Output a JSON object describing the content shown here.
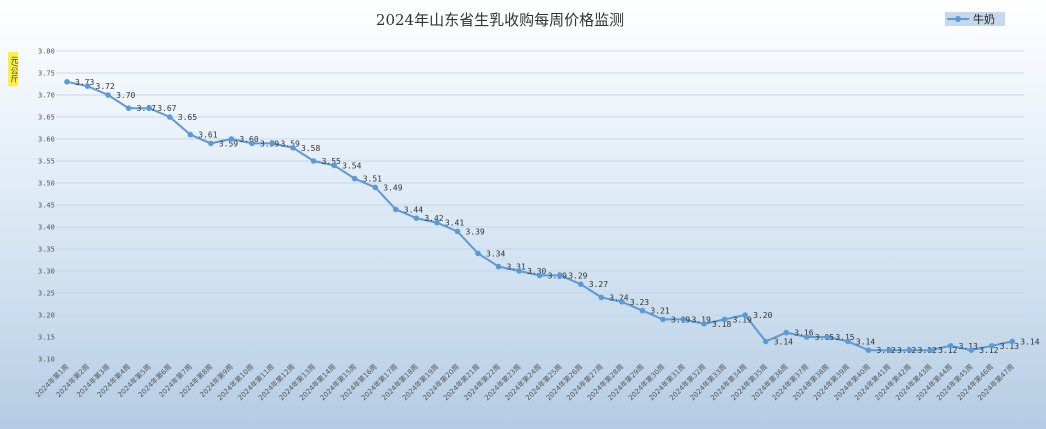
{
  "chart_data": {
    "type": "line",
    "title": "2024年山东省生乳收购每周价格监测",
    "ylabel": "元/公斤",
    "xlabel": "",
    "ylim": [
      3.1,
      3.8
    ],
    "yticks": [
      "3.10",
      "3.15",
      "3.20",
      "3.25",
      "3.30",
      "3.35",
      "3.40",
      "3.45",
      "3.50",
      "3.55",
      "3.60",
      "3.65",
      "3.70",
      "3.75",
      "3.80"
    ],
    "grid": true,
    "legend_position": "top-right",
    "categories": [
      "2024年第1周",
      "2024年第2周",
      "2024年第3周",
      "2024年第4周",
      "2024年第5周",
      "2024年第6周",
      "2024年第7周",
      "2024年第8周",
      "2024年第9周",
      "2024年第10周",
      "2024年第11周",
      "2024年第12周",
      "2024年第13周",
      "2024年第14周",
      "2024年第15周",
      "2024年第16周",
      "2024年第17周",
      "2024年第18周",
      "2024年第19周",
      "2024年第20周",
      "2024年第21周",
      "2024年第22周",
      "2024年第23周",
      "2024年第24周",
      "2024年第25周",
      "2024年第26周",
      "2024年第27周",
      "2024年第28周",
      "2024年第29周",
      "2024年第30周",
      "2024年第31周",
      "2024年第32周",
      "2024年第33周",
      "2024年第34周",
      "2024年第35周",
      "2024年第36周",
      "2024年第37周",
      "2024年第38周",
      "2024年第39周",
      "2024年第40周",
      "2024年第41周",
      "2024年第42周",
      "2024年第43周",
      "2024年第44周",
      "2024年第45周",
      "2024年第46周",
      "2024年第47周"
    ],
    "series": [
      {
        "name": "牛奶",
        "color": "#5b9bd5",
        "values": [
          3.73,
          3.72,
          3.7,
          3.67,
          3.67,
          3.65,
          3.61,
          3.59,
          3.6,
          3.59,
          3.59,
          3.58,
          3.55,
          3.54,
          3.51,
          3.49,
          3.44,
          3.42,
          3.41,
          3.39,
          3.34,
          3.31,
          3.3,
          3.29,
          3.29,
          3.27,
          3.24,
          3.23,
          3.21,
          3.19,
          3.19,
          3.18,
          3.19,
          3.2,
          3.14,
          3.16,
          3.15,
          3.15,
          3.14,
          3.12,
          3.12,
          3.12,
          3.12,
          3.13,
          3.12,
          3.13,
          3.14
        ]
      }
    ]
  }
}
